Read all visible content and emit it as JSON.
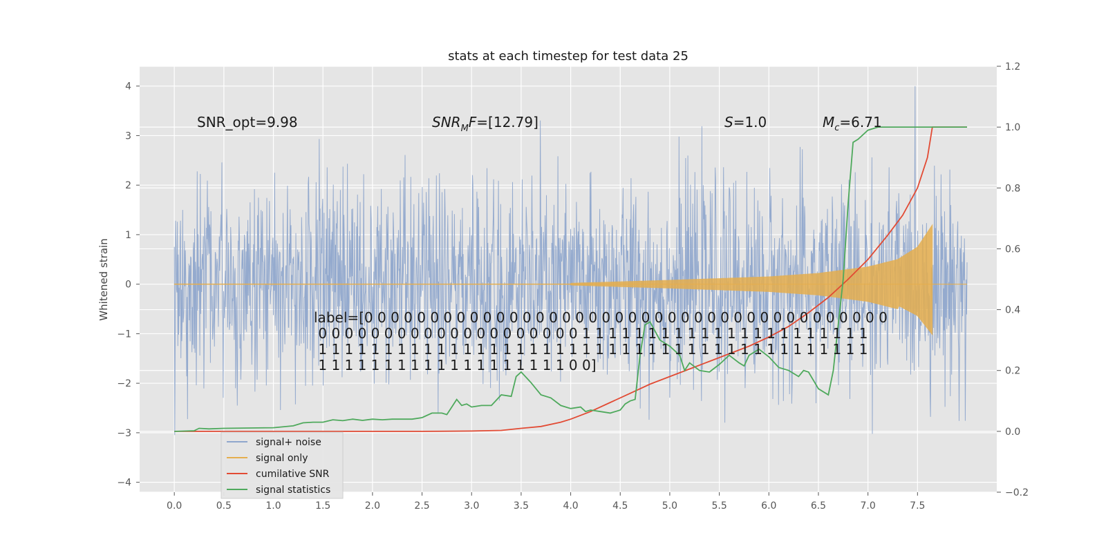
{
  "chart_data": {
    "type": "line",
    "title": "stats at each timestep for test data 25",
    "ylabel": "Whitened strain",
    "xlabel": "",
    "xlim": [
      -0.35,
      8.3
    ],
    "ylim": [
      -4.2,
      4.4
    ],
    "y2lim": [
      -0.2,
      1.2
    ],
    "grid": true,
    "legend_placement": "lower-left",
    "xticks": [
      "0.0",
      "0.5",
      "1.0",
      "1.5",
      "2.0",
      "2.5",
      "3.0",
      "3.5",
      "4.0",
      "4.5",
      "5.0",
      "5.5",
      "6.0",
      "6.5",
      "7.0",
      "7.5"
    ],
    "yticks": [
      "−4",
      "−3",
      "−2",
      "−1",
      "0",
      "1",
      "2",
      "3",
      "4"
    ],
    "y2ticks": [
      "−0.2",
      "0.0",
      "0.2",
      "0.4",
      "0.6",
      "0.8",
      "1.0",
      "1.2"
    ],
    "series": [
      {
        "name": "signal+ noise",
        "color": "#8fa6cc",
        "axis": "left",
        "style": "noisy strain, mostly within ±2, peaks near ±4",
        "x_range": [
          0.0,
          8.0
        ]
      },
      {
        "name": "signal only",
        "color": "#e5ae4e",
        "axis": "left",
        "style": "chirp envelope growing to about 1.2 near t=7.65 then ending",
        "envelope": [
          [
            4.0,
            0.02
          ],
          [
            5.0,
            0.08
          ],
          [
            6.0,
            0.15
          ],
          [
            6.5,
            0.22
          ],
          [
            7.0,
            0.35
          ],
          [
            7.3,
            0.5
          ],
          [
            7.5,
            0.75
          ],
          [
            7.65,
            1.2
          ]
        ]
      },
      {
        "name": "cumilative SNR",
        "color": "#e24a33",
        "axis": "right",
        "points": [
          [
            0.0,
            0.0
          ],
          [
            1.0,
            0.0
          ],
          [
            2.0,
            0.0
          ],
          [
            2.5,
            0.0
          ],
          [
            3.0,
            0.001
          ],
          [
            3.3,
            0.003
          ],
          [
            3.5,
            0.01
          ],
          [
            3.7,
            0.016
          ],
          [
            3.9,
            0.03
          ],
          [
            4.0,
            0.04
          ],
          [
            4.2,
            0.065
          ],
          [
            4.4,
            0.095
          ],
          [
            4.6,
            0.125
          ],
          [
            4.8,
            0.155
          ],
          [
            5.0,
            0.18
          ],
          [
            5.2,
            0.205
          ],
          [
            5.4,
            0.23
          ],
          [
            5.6,
            0.255
          ],
          [
            5.8,
            0.28
          ],
          [
            6.0,
            0.31
          ],
          [
            6.2,
            0.345
          ],
          [
            6.4,
            0.39
          ],
          [
            6.6,
            0.44
          ],
          [
            6.8,
            0.5
          ],
          [
            7.0,
            0.565
          ],
          [
            7.2,
            0.645
          ],
          [
            7.35,
            0.71
          ],
          [
            7.5,
            0.8
          ],
          [
            7.6,
            0.9
          ],
          [
            7.65,
            1.0
          ],
          [
            8.0,
            1.0
          ]
        ]
      },
      {
        "name": "signal statistics",
        "color": "#4ea95c",
        "axis": "right",
        "points": [
          [
            0.0,
            0.0
          ],
          [
            0.2,
            0.002
          ],
          [
            0.25,
            0.01
          ],
          [
            0.35,
            0.008
          ],
          [
            0.5,
            0.01
          ],
          [
            1.0,
            0.012
          ],
          [
            1.2,
            0.018
          ],
          [
            1.3,
            0.028
          ],
          [
            1.4,
            0.03
          ],
          [
            1.5,
            0.03
          ],
          [
            1.6,
            0.038
          ],
          [
            1.7,
            0.035
          ],
          [
            1.8,
            0.04
          ],
          [
            1.9,
            0.036
          ],
          [
            2.0,
            0.04
          ],
          [
            2.1,
            0.038
          ],
          [
            2.2,
            0.04
          ],
          [
            2.4,
            0.04
          ],
          [
            2.5,
            0.045
          ],
          [
            2.6,
            0.06
          ],
          [
            2.7,
            0.06
          ],
          [
            2.75,
            0.055
          ],
          [
            2.8,
            0.08
          ],
          [
            2.85,
            0.105
          ],
          [
            2.9,
            0.085
          ],
          [
            2.95,
            0.09
          ],
          [
            3.0,
            0.08
          ],
          [
            3.1,
            0.085
          ],
          [
            3.2,
            0.085
          ],
          [
            3.3,
            0.12
          ],
          [
            3.4,
            0.115
          ],
          [
            3.45,
            0.18
          ],
          [
            3.5,
            0.195
          ],
          [
            3.6,
            0.16
          ],
          [
            3.7,
            0.12
          ],
          [
            3.8,
            0.11
          ],
          [
            3.9,
            0.085
          ],
          [
            4.0,
            0.075
          ],
          [
            4.1,
            0.08
          ],
          [
            4.15,
            0.065
          ],
          [
            4.2,
            0.07
          ],
          [
            4.3,
            0.065
          ],
          [
            4.4,
            0.06
          ],
          [
            4.5,
            0.07
          ],
          [
            4.55,
            0.09
          ],
          [
            4.6,
            0.1
          ],
          [
            4.65,
            0.105
          ],
          [
            4.7,
            0.25
          ],
          [
            4.75,
            0.35
          ],
          [
            4.8,
            0.36
          ],
          [
            4.9,
            0.3
          ],
          [
            5.0,
            0.28
          ],
          [
            5.1,
            0.25
          ],
          [
            5.15,
            0.2
          ],
          [
            5.2,
            0.225
          ],
          [
            5.3,
            0.2
          ],
          [
            5.4,
            0.195
          ],
          [
            5.5,
            0.22
          ],
          [
            5.6,
            0.25
          ],
          [
            5.7,
            0.225
          ],
          [
            5.75,
            0.215
          ],
          [
            5.8,
            0.25
          ],
          [
            5.9,
            0.27
          ],
          [
            6.0,
            0.245
          ],
          [
            6.1,
            0.21
          ],
          [
            6.2,
            0.2
          ],
          [
            6.3,
            0.18
          ],
          [
            6.35,
            0.2
          ],
          [
            6.4,
            0.195
          ],
          [
            6.5,
            0.14
          ],
          [
            6.6,
            0.12
          ],
          [
            6.65,
            0.2
          ],
          [
            6.7,
            0.35
          ],
          [
            6.75,
            0.5
          ],
          [
            6.8,
            0.75
          ],
          [
            6.85,
            0.95
          ],
          [
            6.9,
            0.96
          ],
          [
            7.0,
            0.99
          ],
          [
            7.1,
            1.0
          ],
          [
            8.0,
            1.0
          ]
        ]
      }
    ]
  },
  "annotations": {
    "snr_opt": "SNR_opt=9.98",
    "snr_mf_main": "SNR",
    "snr_mf_sub": "M",
    "snr_mf_tail": "F=[12.79]",
    "s_main": "S",
    "s_tail": "=1.0",
    "mc_main": "M",
    "mc_sub": "c",
    "mc_tail": "=6.71",
    "label_lines": [
      "label=[0 0 0 0 0 0 0 0 0 0 0 0 0 0 0 0 0 0 0 0 0 0 0 0 0 0 0 0 0 0 0 0 0 0 0 0 0 0 0 0",
      " 0 0 0 0 0 0 0 0 0 0 0 0 0 0 0 0 0 0 0 0 1 1 1 1 1 1 1 1 1 1 1 1 1 1 1 1 1 1 1 1 1 1",
      " 1 1 1 1 1 1 1 1 1 1 1 1 1 1 1 1 1 1 1 1 1 1 1 1 1 1 1 1 1 1 1 1 1 1 1 1 1 1 1 1 1 1",
      " 1 1 1 1 1 1 1 1 1 1 1 1 1 1 1 1 1 1 1 0 0]"
    ]
  }
}
